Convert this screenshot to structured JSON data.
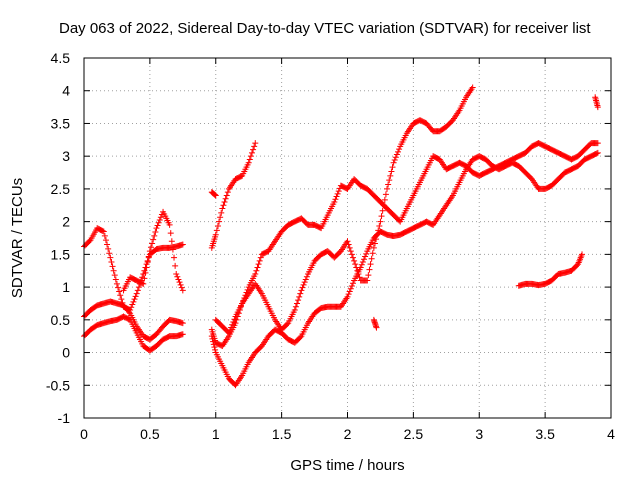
{
  "chart_data": {
    "type": "scatter",
    "title": "Day 063 of 2022, Sidereal Day-to-day VTEC variation (SDTVAR) for receiver list",
    "xlabel": "GPS time / hours",
    "ylabel": "SDTVAR / TECUs",
    "xlim": [
      0,
      4
    ],
    "ylim": [
      -1,
      4.5
    ],
    "xticks": [
      "0",
      "0.5",
      "1",
      "1.5",
      "2",
      "2.5",
      "3",
      "3.5",
      "4"
    ],
    "yticks": [
      "-1",
      "-0.5",
      "0",
      "0.5",
      "1",
      "1.5",
      "2",
      "2.5",
      "3",
      "3.5",
      "4",
      "4.5"
    ],
    "grid": true,
    "marker": "plus",
    "color": "#ff0000",
    "series": [
      {
        "x": [
          0.0,
          0.05,
          0.1,
          0.15,
          0.2,
          0.25,
          0.3,
          0.35,
          0.4,
          0.45,
          0.5,
          0.55,
          0.6,
          0.65,
          0.7,
          0.75
        ],
        "y": [
          1.62,
          1.72,
          1.9,
          1.85,
          1.45,
          1.05,
          0.7,
          0.65,
          0.9,
          1.2,
          1.5,
          1.58,
          1.6,
          1.6,
          1.62,
          1.65
        ]
      },
      {
        "x": [
          0.0,
          0.05,
          0.1,
          0.15,
          0.2,
          0.25,
          0.3,
          0.35,
          0.4,
          0.45,
          0.5,
          0.55,
          0.6,
          0.65,
          0.7,
          0.75
        ],
        "y": [
          0.55,
          0.65,
          0.72,
          0.75,
          0.78,
          0.75,
          0.72,
          0.6,
          0.4,
          0.25,
          0.2,
          0.28,
          0.4,
          0.5,
          0.48,
          0.45
        ]
      },
      {
        "x": [
          0.0,
          0.05,
          0.1,
          0.15,
          0.2,
          0.25,
          0.3,
          0.35,
          0.4,
          0.45,
          0.5,
          0.55,
          0.6,
          0.65,
          0.7,
          0.75
        ],
        "y": [
          0.25,
          0.35,
          0.42,
          0.45,
          0.48,
          0.5,
          0.55,
          0.5,
          0.3,
          0.1,
          0.03,
          0.1,
          0.2,
          0.25,
          0.25,
          0.28
        ]
      },
      {
        "x": [
          0.3,
          0.35,
          0.4,
          0.45,
          0.5,
          0.55,
          0.6,
          0.65,
          0.7,
          0.75
        ],
        "y": [
          0.95,
          1.15,
          1.1,
          1.05,
          1.55,
          1.9,
          2.15,
          1.95,
          1.2,
          0.95
        ]
      },
      {
        "x": [
          0.97,
          1.0,
          1.05,
          1.1,
          1.15,
          1.2,
          1.25,
          1.3,
          1.35,
          1.4,
          1.45,
          1.5,
          1.55,
          1.6,
          1.65,
          1.7,
          1.75,
          1.8,
          1.85,
          1.9,
          1.95,
          2.0,
          2.05,
          2.1,
          2.15,
          2.2,
          2.25,
          2.3,
          2.35,
          2.4,
          2.45,
          2.5,
          2.55,
          2.6,
          2.65,
          2.7,
          2.75,
          2.8,
          2.85,
          2.9,
          2.95,
          3.0,
          3.05,
          3.1,
          3.15,
          3.2,
          3.25,
          3.3,
          3.35,
          3.4,
          3.45,
          3.5,
          3.55,
          3.6,
          3.65,
          3.7,
          3.75,
          3.8,
          3.85,
          3.9
        ],
        "y": [
          0.35,
          0.15,
          0.1,
          0.25,
          0.45,
          0.75,
          1.0,
          1.2,
          1.5,
          1.55,
          1.7,
          1.85,
          1.95,
          2.0,
          2.05,
          1.95,
          1.95,
          1.9,
          2.1,
          2.3,
          2.55,
          2.5,
          2.65,
          2.55,
          2.5,
          2.4,
          2.3,
          2.2,
          2.1,
          2.0,
          2.2,
          2.4,
          2.6,
          2.8,
          3.0,
          2.95,
          2.8,
          2.85,
          2.9,
          2.85,
          2.75,
          2.7,
          2.75,
          2.8,
          2.85,
          2.9,
          2.95,
          3.0,
          3.05,
          3.15,
          3.2,
          3.15,
          3.1,
          3.05,
          3.0,
          2.95,
          3.0,
          3.1,
          3.2,
          3.2
        ]
      },
      {
        "x": [
          0.97,
          1.0,
          1.05,
          1.1,
          1.15,
          1.2,
          1.25,
          1.3,
          1.35,
          1.4,
          1.45,
          1.5,
          1.55,
          1.6,
          1.65,
          1.7,
          1.75,
          1.8,
          1.85,
          1.9,
          1.95,
          2.0,
          2.05,
          2.1,
          2.15,
          2.2,
          2.25,
          2.3,
          2.35,
          2.4,
          2.45,
          2.5,
          2.55,
          2.6,
          2.65,
          2.7,
          2.75,
          2.8,
          2.85,
          2.9,
          2.95,
          3.0,
          3.05,
          3.1,
          3.15,
          3.2,
          3.25,
          3.3,
          3.35,
          3.4,
          3.45,
          3.5,
          3.55,
          3.6,
          3.65,
          3.7,
          3.75,
          3.8,
          3.85,
          3.9
        ],
        "y": [
          0.25,
          0.0,
          -0.2,
          -0.4,
          -0.5,
          -0.35,
          -0.15,
          0.0,
          0.1,
          0.25,
          0.35,
          0.3,
          0.2,
          0.15,
          0.25,
          0.45,
          0.6,
          0.68,
          0.7,
          0.7,
          0.7,
          0.85,
          1.1,
          1.3,
          1.55,
          1.75,
          1.85,
          1.8,
          1.78,
          1.8,
          1.85,
          1.9,
          1.95,
          2.0,
          1.95,
          2.1,
          2.25,
          2.4,
          2.6,
          2.8,
          2.95,
          3.0,
          2.95,
          2.85,
          2.8,
          2.85,
          2.9,
          2.85,
          2.75,
          2.65,
          2.5,
          2.5,
          2.55,
          2.65,
          2.75,
          2.8,
          2.85,
          2.95,
          3.0,
          3.05
        ]
      },
      {
        "x": [
          1.0,
          1.05,
          1.1,
          1.15,
          1.2,
          1.25,
          1.3,
          1.35,
          1.4,
          1.45,
          1.5,
          1.55,
          1.6,
          1.65,
          1.7,
          1.75,
          1.8,
          1.85,
          1.9,
          1.95,
          2.0,
          2.05,
          2.1,
          2.15,
          2.2,
          2.25,
          2.3,
          2.35,
          2.4,
          2.45,
          2.5,
          2.55,
          2.6,
          2.65,
          2.7,
          2.75,
          2.8,
          2.85,
          2.9,
          2.95
        ],
        "y": [
          0.5,
          0.4,
          0.3,
          0.55,
          0.75,
          0.9,
          1.05,
          0.9,
          0.7,
          0.5,
          0.35,
          0.45,
          0.65,
          0.95,
          1.2,
          1.4,
          1.5,
          1.55,
          1.45,
          1.55,
          1.7,
          1.4,
          1.1,
          1.1,
          1.6,
          2.0,
          2.5,
          2.9,
          3.15,
          3.35,
          3.5,
          3.55,
          3.5,
          3.38,
          3.38,
          3.45,
          3.55,
          3.7,
          3.9,
          4.05
        ]
      },
      {
        "x": [
          0.97,
          1.0,
          1.05,
          1.1,
          1.15,
          1.2,
          1.25,
          1.3
        ],
        "y": [
          1.6,
          1.8,
          2.2,
          2.5,
          2.65,
          2.7,
          2.9,
          3.2
        ]
      },
      {
        "x": [
          0.97,
          1.0
        ],
        "y": [
          2.45,
          2.4
        ]
      },
      {
        "x": [
          2.2,
          2.22
        ],
        "y": [
          0.5,
          0.38
        ]
      },
      {
        "x": [
          3.3,
          3.35,
          3.4,
          3.45,
          3.5,
          3.55,
          3.6,
          3.65,
          3.7,
          3.75,
          3.78
        ],
        "y": [
          1.02,
          1.05,
          1.05,
          1.03,
          1.05,
          1.1,
          1.2,
          1.22,
          1.25,
          1.35,
          1.5
        ]
      },
      {
        "x": [
          3.88,
          3.9
        ],
        "y": [
          3.9,
          3.75
        ]
      }
    ]
  }
}
